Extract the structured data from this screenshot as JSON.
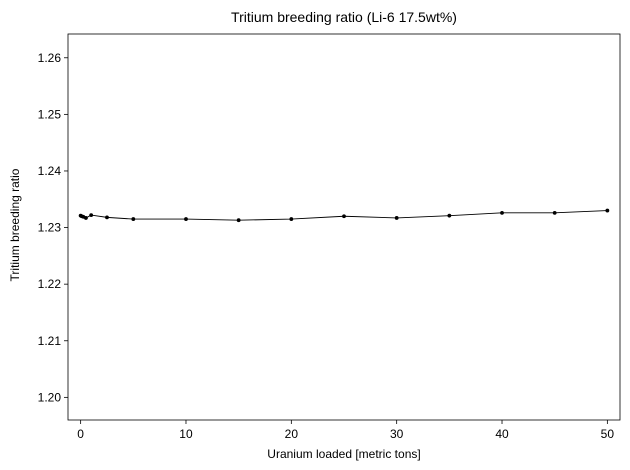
{
  "chart_data": {
    "type": "line",
    "title": "Tritium breeding ratio (Li-6 17.5wt%)",
    "xlabel": "Uranium loaded [metric tons]",
    "ylabel": "Tritium breeding ratio",
    "xlim": [
      -1.2,
      51.2
    ],
    "ylim": [
      1.196,
      1.2642
    ],
    "xticks": [
      0,
      10,
      20,
      30,
      40,
      50
    ],
    "yticks": [
      1.2,
      1.21,
      1.22,
      1.23,
      1.24,
      1.25,
      1.26
    ],
    "xtick_labels": [
      "0",
      "10",
      "20",
      "30",
      "40",
      "50"
    ],
    "ytick_labels": [
      "1.20",
      "1.21",
      "1.22",
      "1.23",
      "1.24",
      "1.25",
      "1.26"
    ],
    "grid": false,
    "legend": null,
    "series": [
      {
        "color": "#000000",
        "marker": "circle",
        "x": [
          0,
          0.1,
          0.25,
          0.5,
          1,
          2.5,
          5,
          10,
          15,
          20,
          25,
          30,
          35,
          40,
          45,
          50
        ],
        "y": [
          1.2321,
          1.232,
          1.2319,
          1.2317,
          1.2322,
          1.2318,
          1.2315,
          1.2315,
          1.2313,
          1.2315,
          1.232,
          1.2317,
          1.2321,
          1.2326,
          1.2326,
          1.233
        ]
      }
    ]
  }
}
